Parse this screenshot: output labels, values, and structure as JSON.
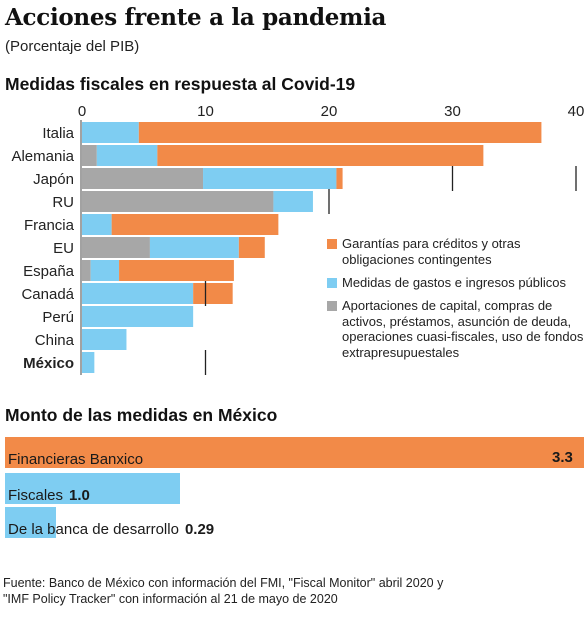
{
  "title": "Acciones frente a la pandemia",
  "subtitle": "(Porcentaje del PIB)",
  "chart1_title": "Medidas fiscales en respuesta al Covid-19",
  "chart2_title": "Monto de las medidas en México",
  "source": [
    "Fuente: Banco de México con información del FMI, \"Fiscal Monitor\" abril 2020 y",
    "\"IMF Policy Tracker\" con información al 21 de mayo de 2020"
  ],
  "colors": {
    "garantias": "#f28a48",
    "gastos": "#7ecdf2",
    "aportaciones": "#a7a7a7",
    "ref_line": "#222222"
  },
  "chart_data": [
    {
      "type": "bar",
      "orientation": "horizontal",
      "stacked": true,
      "title": "Medidas fiscales en respuesta al Covid-19",
      "xlim": [
        0,
        40
      ],
      "xticks": [
        "0",
        "10",
        "20",
        "30",
        "40"
      ],
      "categories": [
        "Italia",
        "Alemania",
        "Japón",
        "RU",
        "Francia",
        "EU",
        "España",
        "Canadá",
        "Perú",
        "China",
        "México"
      ],
      "series": [
        {
          "name": "Aportaciones de capital, compras de activos, préstamos, asunción de deuda, operaciones cuasi-fiscales, uso de fondos extrapresupuestales",
          "key": "aportaciones",
          "values": [
            0,
            1.2,
            9.8,
            15.5,
            0,
            5.5,
            0.7,
            0,
            0,
            0,
            0
          ]
        },
        {
          "name": "Medidas de gastos e ingresos públicos",
          "key": "gastos",
          "values": [
            4.6,
            4.9,
            10.8,
            3.2,
            2.4,
            7.2,
            2.3,
            9.0,
            9.0,
            3.6,
            1.0
          ]
        },
        {
          "name": "Garantías para créditos y otras obligaciones contingentes",
          "key": "garantias",
          "values": [
            32.6,
            26.4,
            0.5,
            0,
            13.5,
            2.1,
            9.3,
            3.2,
            0,
            0,
            0
          ]
        }
      ],
      "reference_lines": [
        {
          "category": "Japón",
          "value": 30
        },
        {
          "category": "Japón",
          "value": 40
        },
        {
          "category": "RU",
          "value": 20
        },
        {
          "category": "Canadá",
          "value": 10
        },
        {
          "category": "México",
          "value": 10
        }
      ],
      "legend": [
        {
          "key": "garantias",
          "text": "Garantías para créditos y otras obligaciones contingentes"
        },
        {
          "key": "gastos",
          "text": "Medidas de gastos e ingresos públicos"
        },
        {
          "key": "aportaciones",
          "text": "Aportaciones de capital, compras de activos, préstamos, asunción de deuda, operaciones cuasi-fiscales, uso de fondos extrapresupuestales"
        }
      ]
    },
    {
      "type": "bar",
      "orientation": "horizontal",
      "title": "Monto de las medidas en México",
      "categories": [
        "Financieras Banxico",
        "Fiscales",
        "De la banca de desarrollo"
      ],
      "values": [
        3.3,
        1.0,
        0.29
      ],
      "labels": [
        "3.3",
        "1.0",
        "0.29"
      ],
      "xlim": [
        0,
        3.3
      ],
      "colors": [
        "#f28a48",
        "#7ecdf2",
        "#7ecdf2"
      ]
    }
  ]
}
